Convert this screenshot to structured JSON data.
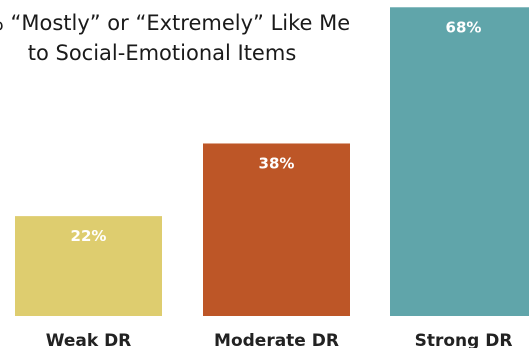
{
  "chart_data": {
    "type": "bar",
    "title_lines": [
      "% “Mostly” or “Extremely” Like Me",
      "to Social-Emotional Items"
    ],
    "categories": [
      "Weak DR",
      "Moderate DR",
      "Strong DR"
    ],
    "values": [
      22,
      38,
      68
    ],
    "value_labels": [
      "22%",
      "38%",
      "68%"
    ],
    "colors": [
      "#DECD6F",
      "#BD5627",
      "#60A5AA"
    ],
    "xlabel": "",
    "ylabel": "",
    "grid": false,
    "legend": "none"
  }
}
